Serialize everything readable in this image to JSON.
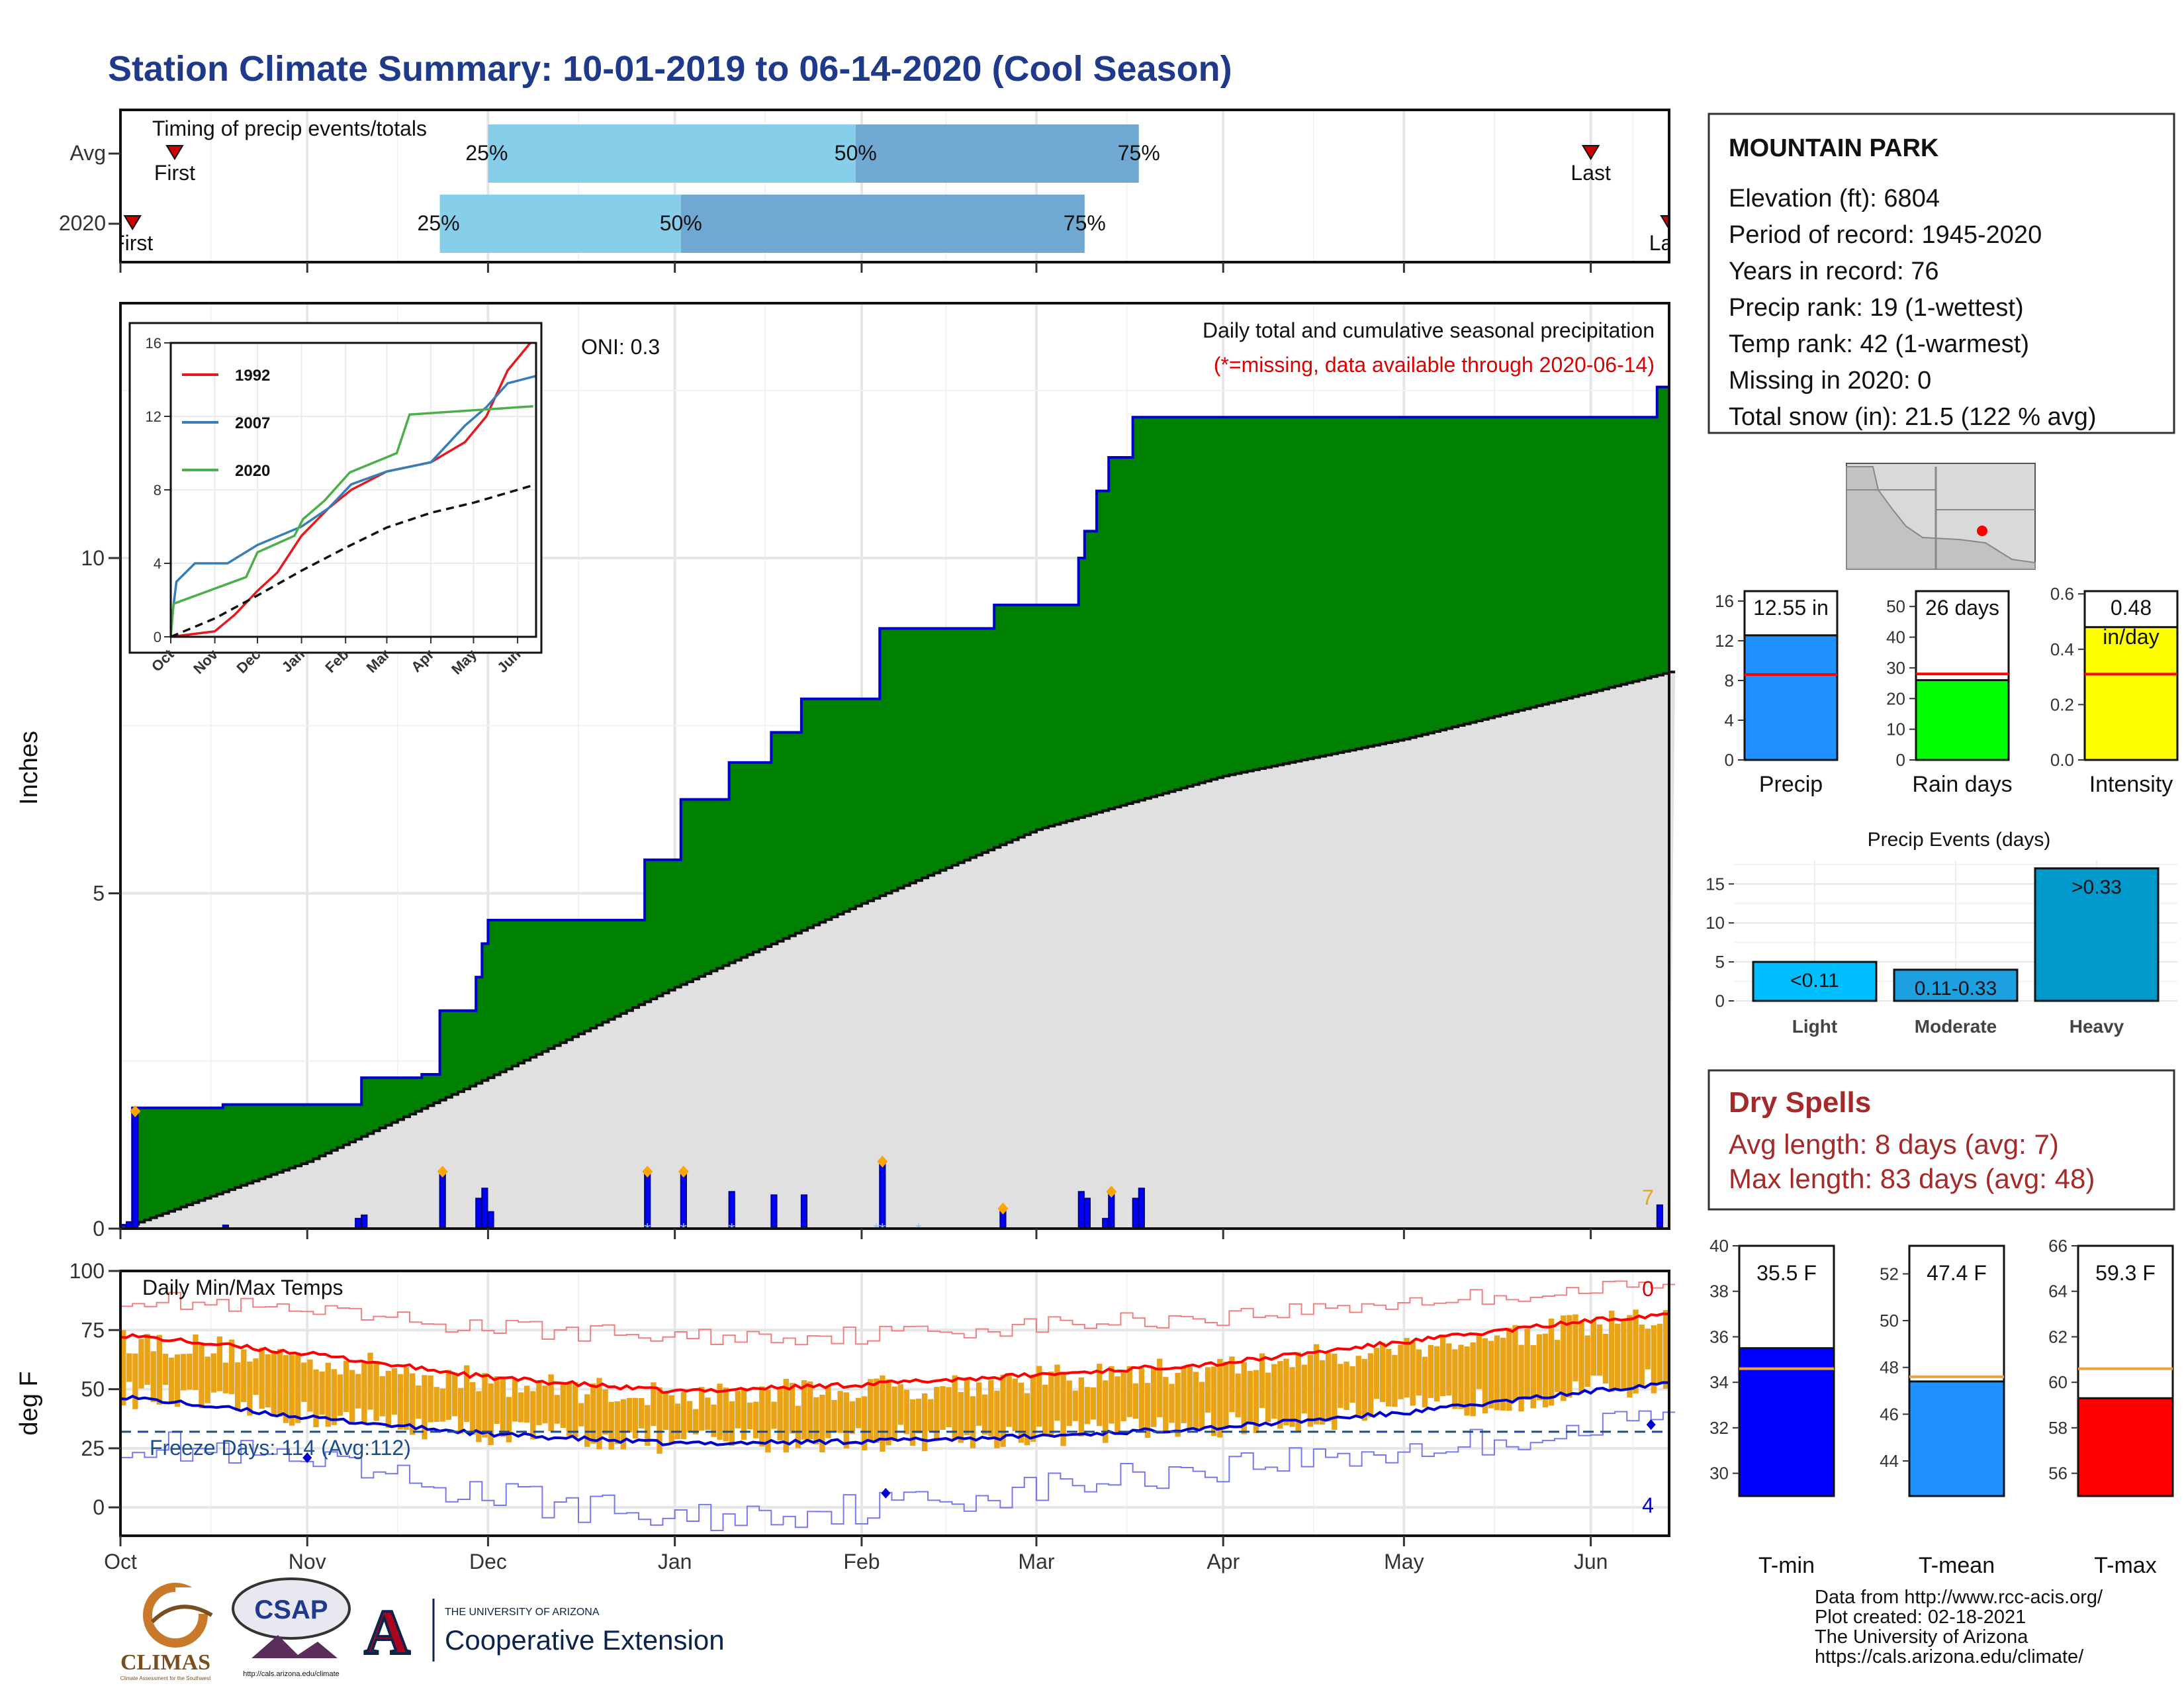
{
  "title": "Station Climate Summary: 10-01-2019 to 06-14-2020 (Cool Season)",
  "timing": {
    "title": "Timing of precip events/totals",
    "rows": [
      {
        "label": "Avg",
        "first_label": "First",
        "last_label": "Last",
        "first": "2019-10-10",
        "last": "2020-06-01",
        "p25": "2019-12-01",
        "p50": "2020-01-31",
        "p75": "2020-03-18",
        "p25_label": "25%",
        "p50_label": "50%",
        "p75_label": "75%"
      },
      {
        "label": "2020",
        "first_label": "First",
        "last_label": "Last",
        "first": "2019-10-03",
        "last": "2020-06-14",
        "p25": "2019-11-23",
        "p50": "2020-01-02",
        "p75": "2020-03-09",
        "p25_label": "25%",
        "p50_label": "50%",
        "p75_label": "75%"
      }
    ],
    "colors": {
      "lower": "#87ceeb",
      "upper": "#6fa8d0",
      "marker": "#cc0000"
    }
  },
  "precip_panel": {
    "ylabel": "Inches",
    "annotation_title": "Daily total and cumulative seasonal precipitation",
    "annotation_missing": "(*=missing, data available through 2020-06-14)",
    "oni": "ONI: 0.3",
    "corner_count": "7",
    "y_ticks": [
      "0",
      "5",
      "10"
    ],
    "colors": {
      "fill": "#008000",
      "outline": "#0000cc",
      "avg": "#e0e0e0",
      "avg_line": "#111111",
      "bars": "#0000ff",
      "event": "#ffa500",
      "missing": "#87ceeb"
    }
  },
  "x_axis": {
    "labels": [
      "Oct",
      "Nov",
      "Dec",
      "Jan",
      "Feb",
      "Mar",
      "Apr",
      "May",
      "Jun"
    ]
  },
  "inset": {
    "y_ticks": [
      "0",
      "4",
      "8",
      "12",
      "16"
    ],
    "x_labels": [
      "Oct",
      "Nov",
      "Dec",
      "Jan",
      "Feb",
      "Mar",
      "Apr",
      "May",
      "Jun"
    ],
    "legend": [
      {
        "name": "1992",
        "color": "#e41a1c"
      },
      {
        "name": "2007",
        "color": "#377eb8"
      },
      {
        "name": "2020",
        "color": "#4daf4a"
      }
    ]
  },
  "temp_panel": {
    "ylabel": "deg F",
    "title": "Daily Min/Max Temps",
    "freeze_label": "Freeze Days: 114 (Avg:112)",
    "top_count": "0",
    "bottom_count": "4",
    "y_ticks": [
      "0",
      "25",
      "50",
      "75",
      "100"
    ],
    "colors": {
      "bars": "#e8a317",
      "avg_max": "#ff0000",
      "avg_min": "#0000cc",
      "rec_max": "#f08080",
      "rec_min": "#7777ee",
      "freeze": "#1a4d8f"
    }
  },
  "station": {
    "name": "MOUNTAIN PARK",
    "lines": [
      "Elevation (ft): 6804",
      "Period of record: 1945-2020",
      "Years in record: 76",
      "Precip rank: 19 (1-wettest)",
      "Temp rank: 42 (1-warmest)",
      "Missing in 2020: 0",
      "Total snow (in): 21.5 (122 % avg)"
    ]
  },
  "summary_bars": [
    {
      "label": "Precip",
      "value": 12.55,
      "value_label": "12.55 in",
      "avg": 8.6,
      "ymax": 17,
      "ticks": [
        "0",
        "4",
        "8",
        "12",
        "16"
      ],
      "tick_values": [
        0,
        4,
        8,
        12,
        16
      ],
      "color": "#1e90ff"
    },
    {
      "label": "Rain days",
      "value": 26,
      "value_label": "26 days",
      "avg": 28,
      "ymax": 55,
      "ticks": [
        "0",
        "10",
        "20",
        "30",
        "40",
        "50"
      ],
      "tick_values": [
        0,
        10,
        20,
        30,
        40,
        50
      ],
      "color": "#00ff00"
    },
    {
      "label": "Intensity",
      "value": 0.48,
      "value_label": "0.48",
      "unit_label": "in/day",
      "avg": 0.31,
      "ymax": 0.61,
      "ticks": [
        "0.0",
        "0.2",
        "0.4",
        "0.6"
      ],
      "tick_values": [
        0,
        0.2,
        0.4,
        0.6
      ],
      "color": "#ffff00"
    }
  ],
  "precip_events": {
    "title": "Precip Events (days)",
    "ticks": [
      "0",
      "5",
      "10",
      "15"
    ],
    "bars": [
      {
        "label": "Light",
        "value": 5,
        "value_label": "<0.11",
        "color": "#00bfff"
      },
      {
        "label": "Moderate",
        "value": 4,
        "value_label": "0.11-0.33",
        "color": "#1ca0e0"
      },
      {
        "label": "Heavy",
        "value": 17,
        "value_label": ">0.33",
        "color": "#0099cc"
      }
    ]
  },
  "dry_spells": {
    "title": "Dry Spells",
    "avg_line": "Avg length: 8 days (avg: 7)",
    "max_line": "Max length: 83 days (avg: 48)"
  },
  "temp_bars": [
    {
      "label": "T-min",
      "value": 35.5,
      "value_label": "35.5 F",
      "avg": 34.6,
      "ymin": 29,
      "ymax": 40,
      "ticks": [
        "30",
        "32",
        "34",
        "36",
        "38",
        "40"
      ],
      "tick_values": [
        30,
        32,
        34,
        36,
        38,
        40
      ],
      "color": "#0000ff"
    },
    {
      "label": "T-mean",
      "value": 47.4,
      "value_label": "47.4 F",
      "avg": 47.6,
      "ymin": 42.5,
      "ymax": 53.2,
      "ticks": [
        "44",
        "46",
        "48",
        "50",
        "52"
      ],
      "tick_values": [
        44,
        46,
        48,
        50,
        52
      ],
      "color": "#1e90ff"
    },
    {
      "label": "T-max",
      "value": 59.3,
      "value_label": "59.3 F",
      "avg": 60.6,
      "ymin": 55,
      "ymax": 66,
      "ticks": [
        "56",
        "58",
        "60",
        "62",
        "64",
        "66"
      ],
      "tick_values": [
        56,
        58,
        60,
        62,
        64,
        66
      ],
      "color": "#ff0000"
    }
  ],
  "footer": {
    "lines": [
      "Data from http://www.rcc-acis.org/",
      "Plot created: 02-18-2021",
      "The University of Arizona",
      "https://cals.arizona.edu/climate/"
    ],
    "logos": {
      "climas": "CLIMAS",
      "climas_sub": "Climate Assessment for the Southwest",
      "csap": "CSAP",
      "csap_url": "http://cals.arizona.edu/climate",
      "ua_letter": "A",
      "ua_university": "THE UNIVERSITY OF ARIZONA",
      "ua_extension": "Cooperative Extension"
    }
  },
  "chart_data": [
    {
      "type": "area",
      "title": "Daily total and cumulative seasonal precipitation",
      "ylabel": "Inches",
      "ylim": [
        0,
        13.8
      ],
      "x_range": [
        "2019-10-01",
        "2020-06-14"
      ],
      "cumulative_steps": [
        {
          "x": "2019-10-01",
          "y": 0.05
        },
        {
          "x": "2019-10-03",
          "y": 1.8
        },
        {
          "x": "2019-10-18",
          "y": 1.85
        },
        {
          "x": "2019-11-10",
          "y": 2.25
        },
        {
          "x": "2019-11-20",
          "y": 2.3
        },
        {
          "x": "2019-11-23",
          "y": 3.25
        },
        {
          "x": "2019-11-29",
          "y": 3.75
        },
        {
          "x": "2019-11-30",
          "y": 4.25
        },
        {
          "x": "2019-12-01",
          "y": 4.6
        },
        {
          "x": "2019-12-27",
          "y": 5.5
        },
        {
          "x": "2020-01-02",
          "y": 6.4
        },
        {
          "x": "2020-01-10",
          "y": 6.95
        },
        {
          "x": "2020-01-17",
          "y": 7.4
        },
        {
          "x": "2020-01-22",
          "y": 7.9
        },
        {
          "x": "2020-02-04",
          "y": 8.95
        },
        {
          "x": "2020-02-23",
          "y": 9.3
        },
        {
          "x": "2020-03-08",
          "y": 10.0
        },
        {
          "x": "2020-03-09",
          "y": 10.4
        },
        {
          "x": "2020-03-11",
          "y": 11.0
        },
        {
          "x": "2020-03-13",
          "y": 11.5
        },
        {
          "x": "2020-03-17",
          "y": 12.1
        },
        {
          "x": "2020-06-12",
          "y": 12.55
        }
      ],
      "average_cumulative": [
        {
          "x": "2019-10-01",
          "y": 0.0
        },
        {
          "x": "2019-11-01",
          "y": 1.0
        },
        {
          "x": "2019-12-01",
          "y": 2.25
        },
        {
          "x": "2020-01-01",
          "y": 3.6
        },
        {
          "x": "2020-02-01",
          "y": 4.85
        },
        {
          "x": "2020-03-01",
          "y": 5.95
        },
        {
          "x": "2020-04-01",
          "y": 6.75
        },
        {
          "x": "2020-05-01",
          "y": 7.3
        },
        {
          "x": "2020-06-01",
          "y": 8.0
        },
        {
          "x": "2020-06-14",
          "y": 8.3
        }
      ],
      "daily_bars": [
        {
          "x": "2019-10-02",
          "y": 0.1
        },
        {
          "x": "2019-10-03",
          "y": 1.75
        },
        {
          "x": "2019-10-18",
          "y": 0.05
        },
        {
          "x": "2019-11-09",
          "y": 0.15
        },
        {
          "x": "2019-11-10",
          "y": 0.2
        },
        {
          "x": "2019-11-23",
          "y": 0.85
        },
        {
          "x": "2019-11-29",
          "y": 0.45
        },
        {
          "x": "2019-11-30",
          "y": 0.6
        },
        {
          "x": "2019-12-01",
          "y": 0.25
        },
        {
          "x": "2019-12-27",
          "y": 0.85
        },
        {
          "x": "2020-01-02",
          "y": 0.85
        },
        {
          "x": "2020-01-10",
          "y": 0.55
        },
        {
          "x": "2020-01-17",
          "y": 0.5
        },
        {
          "x": "2020-01-22",
          "y": 0.5
        },
        {
          "x": "2020-02-04",
          "y": 1.0
        },
        {
          "x": "2020-02-24",
          "y": 0.3
        },
        {
          "x": "2020-03-08",
          "y": 0.55
        },
        {
          "x": "2020-03-09",
          "y": 0.45
        },
        {
          "x": "2020-03-12",
          "y": 0.15
        },
        {
          "x": "2020-03-13",
          "y": 0.55
        },
        {
          "x": "2020-03-17",
          "y": 0.45
        },
        {
          "x": "2020-03-18",
          "y": 0.6
        },
        {
          "x": "2020-06-12",
          "y": 0.35
        }
      ],
      "event_markers": [
        "2019-10-03",
        "2019-11-23",
        "2019-12-27",
        "2020-01-02",
        "2020-02-04",
        "2020-02-24",
        "2020-03-13"
      ],
      "missing_markers": [
        "2019-12-27",
        "2020-01-02",
        "2020-01-10",
        "2020-02-03",
        "2020-02-04",
        "2020-02-10"
      ]
    },
    {
      "type": "line",
      "title": "",
      "x_range": [
        "2019-10-01",
        "2020-06-14"
      ],
      "ylim": [
        0,
        16
      ],
      "series": [
        {
          "name": "1992",
          "points": [
            [
              "2019-10-01",
              0
            ],
            [
              "2019-11-01",
              0.3
            ],
            [
              "2019-11-15",
              1.2
            ],
            [
              "2019-12-01",
              2.5
            ],
            [
              "2019-12-15",
              3.5
            ],
            [
              "2020-01-01",
              5.5
            ],
            [
              "2020-01-20",
              7.0
            ],
            [
              "2020-02-05",
              8.0
            ],
            [
              "2020-03-01",
              9.0
            ],
            [
              "2020-04-01",
              9.5
            ],
            [
              "2020-04-25",
              10.6
            ],
            [
              "2020-05-10",
              12.0
            ],
            [
              "2020-05-25",
              14.5
            ],
            [
              "2020-06-10",
              16.0
            ]
          ]
        },
        {
          "name": "2007",
          "points": [
            [
              "2019-10-01",
              0.5
            ],
            [
              "2019-10-05",
              3.0
            ],
            [
              "2019-10-18",
              4.0
            ],
            [
              "2019-11-10",
              4.0
            ],
            [
              "2019-12-01",
              5.0
            ],
            [
              "2020-01-01",
              6.0
            ],
            [
              "2020-01-20",
              7.0
            ],
            [
              "2020-02-05",
              8.3
            ],
            [
              "2020-03-01",
              9.0
            ],
            [
              "2020-04-01",
              9.5
            ],
            [
              "2020-04-25",
              11.5
            ],
            [
              "2020-05-10",
              12.5
            ],
            [
              "2020-05-25",
              13.8
            ],
            [
              "2020-06-14",
              14.2
            ]
          ]
        },
        {
          "name": "2020",
          "points": [
            [
              "2019-10-01",
              0.0
            ],
            [
              "2019-10-03",
              1.8
            ],
            [
              "2019-11-23",
              3.25
            ],
            [
              "2019-12-01",
              4.6
            ],
            [
              "2019-12-27",
              5.5
            ],
            [
              "2020-01-02",
              6.4
            ],
            [
              "2020-01-17",
              7.4
            ],
            [
              "2020-02-04",
              8.95
            ],
            [
              "2020-03-08",
              10.0
            ],
            [
              "2020-03-17",
              12.1
            ],
            [
              "2020-06-12",
              12.55
            ]
          ]
        },
        {
          "name": "",
          "points": [
            [
              "2019-10-01",
              0
            ],
            [
              "2019-11-01",
              1.0
            ],
            [
              "2019-12-01",
              2.25
            ],
            [
              "2020-01-01",
              3.6
            ],
            [
              "2020-02-01",
              4.85
            ],
            [
              "2020-03-01",
              5.95
            ],
            [
              "2020-04-01",
              6.75
            ],
            [
              "2020-05-01",
              7.3
            ],
            [
              "2020-06-01",
              8.0
            ],
            [
              "2020-06-14",
              8.3
            ]
          ]
        }
      ]
    },
    {
      "type": "bar",
      "title": "Daily Min/Max Temps",
      "ylabel": "deg F",
      "ylim": [
        -12,
        100
      ],
      "x_range": [
        "2019-10-01",
        "2020-06-14"
      ],
      "monthly_ranges": [
        {
          "month": "Oct",
          "min": 38,
          "max": 66
        },
        {
          "month": "Nov",
          "min": 33,
          "max": 60
        },
        {
          "month": "Dec",
          "min": 30,
          "max": 53
        },
        {
          "month": "Jan",
          "min": 27,
          "max": 50
        },
        {
          "month": "Feb",
          "min": 28,
          "max": 52
        },
        {
          "month": "Mar",
          "min": 32,
          "max": 56
        },
        {
          "month": "Apr",
          "min": 37,
          "max": 64
        },
        {
          "month": "May",
          "min": 44,
          "max": 73
        },
        {
          "month": "Jun",
          "min": 48,
          "max": 78
        }
      ],
      "avg_max": [
        [
          "2019-10-01",
          73
        ],
        [
          "2019-11-01",
          65
        ],
        [
          "2019-12-01",
          55
        ],
        [
          "2020-01-01",
          49
        ],
        [
          "2020-02-01",
          52
        ],
        [
          "2020-03-01",
          56
        ],
        [
          "2020-04-01",
          61
        ],
        [
          "2020-05-01",
          70
        ],
        [
          "2020-06-01",
          79
        ],
        [
          "2020-06-14",
          82
        ]
      ],
      "avg_min": [
        [
          "2019-10-01",
          47
        ],
        [
          "2019-11-01",
          38
        ],
        [
          "2019-12-01",
          31
        ],
        [
          "2020-01-01",
          27
        ],
        [
          "2020-02-01",
          28
        ],
        [
          "2020-03-01",
          30
        ],
        [
          "2020-04-01",
          34
        ],
        [
          "2020-05-01",
          40
        ],
        [
          "2020-06-01",
          49
        ],
        [
          "2020-06-14",
          53
        ]
      ],
      "record_max": [
        [
          "2019-10-01",
          89
        ],
        [
          "2019-11-01",
          82
        ],
        [
          "2019-12-01",
          76
        ],
        [
          "2020-01-01",
          72
        ],
        [
          "2020-02-01",
          73
        ],
        [
          "2020-03-01",
          77
        ],
        [
          "2020-04-01",
          81
        ],
        [
          "2020-05-01",
          87
        ],
        [
          "2020-06-01",
          92
        ],
        [
          "2020-06-14",
          94
        ]
      ],
      "record_min": [
        [
          "2019-10-01",
          28
        ],
        [
          "2019-11-01",
          18
        ],
        [
          "2019-12-01",
          5
        ],
        [
          "2020-01-01",
          -5
        ],
        [
          "2020-02-01",
          0
        ],
        [
          "2020-03-01",
          8
        ],
        [
          "2020-04-01",
          18
        ],
        [
          "2020-05-01",
          24
        ],
        [
          "2020-06-01",
          33
        ],
        [
          "2020-06-14",
          40
        ]
      ],
      "freeze_line": 32,
      "min_markers": [
        [
          "2019-11-01",
          21
        ],
        [
          "2020-02-05",
          6
        ],
        [
          "2020-06-11",
          35
        ]
      ]
    },
    {
      "type": "bar",
      "title": "Precip Events (days)",
      "categories": [
        "Light",
        "Moderate",
        "Heavy"
      ],
      "values": [
        5,
        4,
        17
      ],
      "ylim": [
        0,
        18
      ]
    }
  ]
}
